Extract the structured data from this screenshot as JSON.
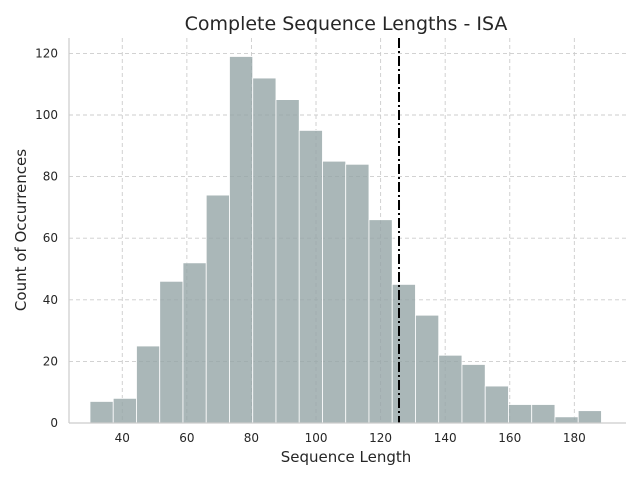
{
  "chart_data": {
    "type": "bar",
    "title": "Complete Sequence Lengths  - ISA",
    "xlabel": "Sequence Length",
    "ylabel": "Count of Occurrences",
    "xlim": [
      23.5,
      196
    ],
    "ylim": [
      0,
      125
    ],
    "xticks": [
      40,
      60,
      80,
      100,
      120,
      140,
      160,
      180
    ],
    "yticks": [
      0,
      20,
      40,
      60,
      80,
      100,
      120
    ],
    "grid": true,
    "bin_edges": [
      30,
      37.2,
      44.4,
      51.6,
      58.8,
      66,
      73.2,
      80.4,
      87.6,
      94.8,
      102,
      109.2,
      116.4,
      123.6,
      130.8,
      138,
      145.2,
      152.4,
      159.6,
      166.8,
      174,
      181.2,
      188.4
    ],
    "values": [
      7,
      8,
      25,
      46,
      52,
      74,
      119,
      112,
      105,
      95,
      85,
      84,
      66,
      45,
      35,
      22,
      19,
      12,
      6,
      6,
      2,
      4
    ],
    "reference_line": {
      "x": 125.7,
      "style": "dash-dot",
      "color": "#000000"
    },
    "bar_color": "#95a5a6"
  }
}
